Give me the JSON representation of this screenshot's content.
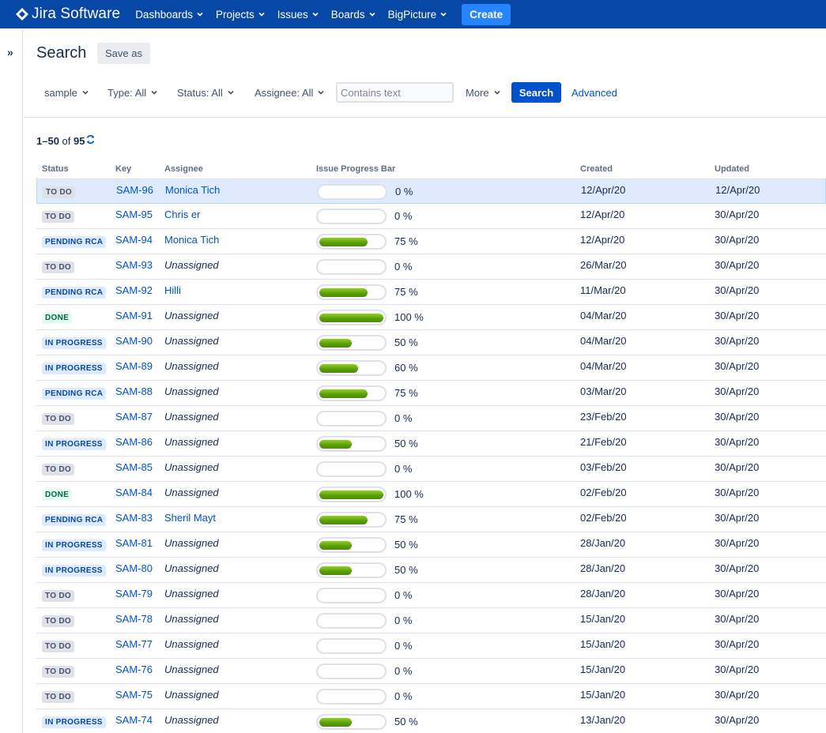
{
  "nav": {
    "logo_text": "Jira Software",
    "items": [
      "Dashboards",
      "Projects",
      "Issues",
      "Boards",
      "BigPicture"
    ],
    "create_label": "Create"
  },
  "sidebar": {
    "expand_icon": "»"
  },
  "header": {
    "title": "Search",
    "save_as_label": "Save as"
  },
  "filters": {
    "project": "sample",
    "type": "Type: All",
    "status": "Status: All",
    "assignee": "Assignee: All",
    "text_placeholder": "Contains text",
    "more": "More",
    "search_label": "Search",
    "advanced_label": "Advanced"
  },
  "results": {
    "range": "1–50",
    "of": "of",
    "total": "95"
  },
  "table": {
    "columns": [
      "Status",
      "Key",
      "Assignee",
      "Issue Progress Bar",
      "Created",
      "Updated"
    ],
    "rows": [
      {
        "status": "TO DO",
        "status_type": "todo",
        "key": "SAM-96",
        "assignee": "Monica Tich",
        "unassigned": false,
        "progress": 0,
        "progress_label": "0 %",
        "created": "12/Apr/20",
        "updated": "12/Apr/20"
      },
      {
        "status": "TO DO",
        "status_type": "todo",
        "key": "SAM-95",
        "assignee": "Chris er",
        "unassigned": false,
        "progress": 0,
        "progress_label": "0 %",
        "created": "12/Apr/20",
        "updated": "30/Apr/20"
      },
      {
        "status": "PENDING RCA",
        "status_type": "blue",
        "key": "SAM-94",
        "assignee": "Monica Tich",
        "unassigned": false,
        "progress": 75,
        "progress_label": "75 %",
        "created": "12/Apr/20",
        "updated": "30/Apr/20"
      },
      {
        "status": "TO DO",
        "status_type": "todo",
        "key": "SAM-93",
        "assignee": "Unassigned",
        "unassigned": true,
        "progress": 0,
        "progress_label": "0 %",
        "created": "26/Mar/20",
        "updated": "30/Apr/20"
      },
      {
        "status": "PENDING RCA",
        "status_type": "blue",
        "key": "SAM-92",
        "assignee": "Hilli",
        "unassigned": false,
        "progress": 75,
        "progress_label": "75 %",
        "created": "11/Mar/20",
        "updated": "30/Apr/20"
      },
      {
        "status": "DONE",
        "status_type": "done",
        "key": "SAM-91",
        "assignee": "Unassigned",
        "unassigned": true,
        "progress": 100,
        "progress_label": "100 %",
        "created": "04/Mar/20",
        "updated": "30/Apr/20"
      },
      {
        "status": "IN PROGRESS",
        "status_type": "blue",
        "key": "SAM-90",
        "assignee": "Unassigned",
        "unassigned": true,
        "progress": 50,
        "progress_label": "50 %",
        "created": "04/Mar/20",
        "updated": "30/Apr/20"
      },
      {
        "status": "IN PROGRESS",
        "status_type": "blue",
        "key": "SAM-89",
        "assignee": "Unassigned",
        "unassigned": true,
        "progress": 60,
        "progress_label": "60 %",
        "created": "04/Mar/20",
        "updated": "30/Apr/20"
      },
      {
        "status": "PENDING RCA",
        "status_type": "blue",
        "key": "SAM-88",
        "assignee": "Unassigned",
        "unassigned": true,
        "progress": 75,
        "progress_label": "75 %",
        "created": "03/Mar/20",
        "updated": "30/Apr/20"
      },
      {
        "status": "TO DO",
        "status_type": "todo",
        "key": "SAM-87",
        "assignee": "Unassigned",
        "unassigned": true,
        "progress": 0,
        "progress_label": "0 %",
        "created": "23/Feb/20",
        "updated": "30/Apr/20"
      },
      {
        "status": "IN PROGRESS",
        "status_type": "blue",
        "key": "SAM-86",
        "assignee": "Unassigned",
        "unassigned": true,
        "progress": 50,
        "progress_label": "50 %",
        "created": "21/Feb/20",
        "updated": "30/Apr/20"
      },
      {
        "status": "TO DO",
        "status_type": "todo",
        "key": "SAM-85",
        "assignee": "Unassigned",
        "unassigned": true,
        "progress": 0,
        "progress_label": "0 %",
        "created": "03/Feb/20",
        "updated": "30/Apr/20"
      },
      {
        "status": "DONE",
        "status_type": "done",
        "key": "SAM-84",
        "assignee": "Unassigned",
        "unassigned": true,
        "progress": 100,
        "progress_label": "100 %",
        "created": "02/Feb/20",
        "updated": "30/Apr/20"
      },
      {
        "status": "PENDING RCA",
        "status_type": "blue",
        "key": "SAM-83",
        "assignee": "Sheril Mayt",
        "unassigned": false,
        "progress": 75,
        "progress_label": "75 %",
        "created": "02/Feb/20",
        "updated": "30/Apr/20"
      },
      {
        "status": "IN PROGRESS",
        "status_type": "blue",
        "key": "SAM-81",
        "assignee": "Unassigned",
        "unassigned": true,
        "progress": 50,
        "progress_label": "50 %",
        "created": "28/Jan/20",
        "updated": "30/Apr/20"
      },
      {
        "status": "IN PROGRESS",
        "status_type": "blue",
        "key": "SAM-80",
        "assignee": "Unassigned",
        "unassigned": true,
        "progress": 50,
        "progress_label": "50 %",
        "created": "28/Jan/20",
        "updated": "30/Apr/20"
      },
      {
        "status": "TO DO",
        "status_type": "todo",
        "key": "SAM-79",
        "assignee": "Unassigned",
        "unassigned": true,
        "progress": 0,
        "progress_label": "0 %",
        "created": "28/Jan/20",
        "updated": "30/Apr/20"
      },
      {
        "status": "TO DO",
        "status_type": "todo",
        "key": "SAM-78",
        "assignee": "Unassigned",
        "unassigned": true,
        "progress": 0,
        "progress_label": "0 %",
        "created": "15/Jan/20",
        "updated": "30/Apr/20"
      },
      {
        "status": "TO DO",
        "status_type": "todo",
        "key": "SAM-77",
        "assignee": "Unassigned",
        "unassigned": true,
        "progress": 0,
        "progress_label": "0 %",
        "created": "15/Jan/20",
        "updated": "30/Apr/20"
      },
      {
        "status": "TO DO",
        "status_type": "todo",
        "key": "SAM-76",
        "assignee": "Unassigned",
        "unassigned": true,
        "progress": 0,
        "progress_label": "0 %",
        "created": "15/Jan/20",
        "updated": "30/Apr/20"
      },
      {
        "status": "TO DO",
        "status_type": "todo",
        "key": "SAM-75",
        "assignee": "Unassigned",
        "unassigned": true,
        "progress": 0,
        "progress_label": "0 %",
        "created": "15/Jan/20",
        "updated": "30/Apr/20"
      },
      {
        "status": "IN PROGRESS",
        "status_type": "blue",
        "key": "SAM-74",
        "assignee": "Unassigned",
        "unassigned": true,
        "progress": 50,
        "progress_label": "50 %",
        "created": "13/Jan/20",
        "updated": "30/Apr/20"
      }
    ]
  },
  "colors": {
    "nav_bg": "#0747a6",
    "create_bg": "#2684ff",
    "link": "#0052cc",
    "progress_green": "#5a9c0c",
    "selected_row": "#deebff"
  }
}
